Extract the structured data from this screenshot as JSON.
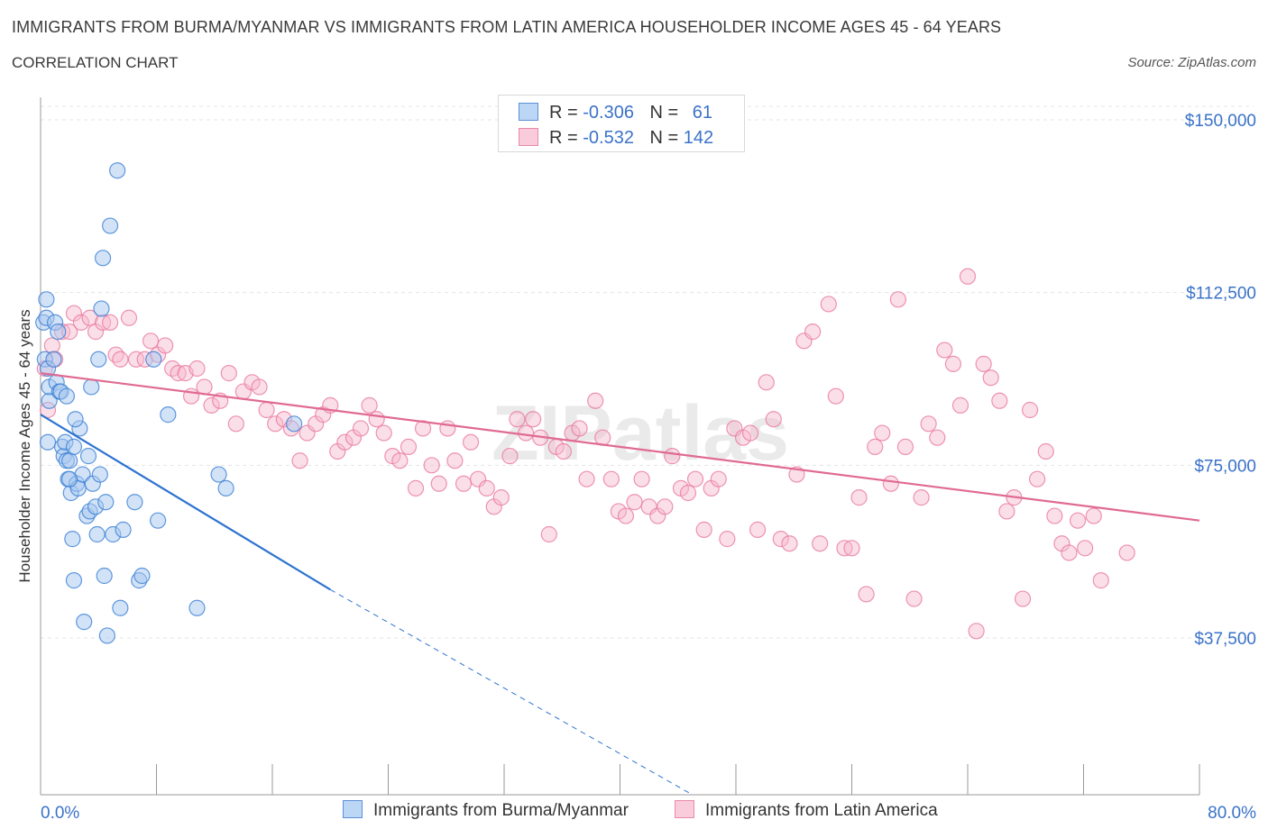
{
  "title": "IMMIGRANTS FROM BURMA/MYANMAR VS IMMIGRANTS FROM LATIN AMERICA HOUSEHOLDER INCOME AGES 45 - 64 YEARS",
  "subtitle": "CORRELATION CHART",
  "source": "Source: ZipAtlas.com",
  "watermark": "ZIPatlas",
  "colors": {
    "blue_fill": "#a8c8f0",
    "blue_stroke": "#3a7fd4",
    "blue_line": "#2f74d0",
    "pink_fill": "#f6b8cc",
    "pink_stroke": "#e8799f",
    "pink_line": "#e06a92",
    "axis_label": "#3a72c9"
  },
  "legend": {
    "rows": [
      {
        "r_label": "R =",
        "r_value": "-0.306",
        "n_label": "N =",
        "n_value": "61"
      },
      {
        "r_label": "R =",
        "r_value": "-0.532",
        "n_label": "N =",
        "n_value": "142"
      }
    ]
  },
  "bottom_legend": [
    "Immigrants from Burma/Myanmar",
    "Immigrants from Latin America"
  ],
  "chart_data": {
    "type": "scatter",
    "ylabel": "Householder Income Ages 45 - 64 years",
    "x_tick_labels": [
      "0.0%",
      "80.0%"
    ],
    "y_tick_labels": [
      "$150,000",
      "$112,500",
      "$75,000",
      "$37,500"
    ],
    "y_ticks": [
      150000,
      112500,
      75000,
      37500
    ],
    "xlim": [
      0,
      80
    ],
    "ylim": [
      10000,
      155000
    ],
    "grid": true,
    "series": [
      {
        "name": "Immigrants from Burma/Myanmar",
        "points": [
          [
            0.2,
            106000
          ],
          [
            0.4,
            107000
          ],
          [
            0.3,
            98000
          ],
          [
            0.5,
            96000
          ],
          [
            0.6,
            89000
          ],
          [
            0.4,
            111000
          ],
          [
            0.6,
            92000
          ],
          [
            0.5,
            80000
          ],
          [
            1.0,
            106000
          ],
          [
            1.1,
            93000
          ],
          [
            1.3,
            91000
          ],
          [
            1.4,
            91000
          ],
          [
            1.5,
            79000
          ],
          [
            1.6,
            77000
          ],
          [
            1.7,
            80000
          ],
          [
            1.8,
            76000
          ],
          [
            1.9,
            72000
          ],
          [
            2.0,
            76000
          ],
          [
            2.1,
            69000
          ],
          [
            2.2,
            59000
          ],
          [
            2.3,
            79000
          ],
          [
            2.3,
            50000
          ],
          [
            2.5,
            71000
          ],
          [
            2.6,
            70000
          ],
          [
            2.7,
            83000
          ],
          [
            2.9,
            73000
          ],
          [
            3.0,
            41000
          ],
          [
            3.2,
            64000
          ],
          [
            3.3,
            77000
          ],
          [
            3.4,
            65000
          ],
          [
            3.5,
            92000
          ],
          [
            3.6,
            71000
          ],
          [
            3.8,
            66000
          ],
          [
            4.0,
            98000
          ],
          [
            4.1,
            73000
          ],
          [
            4.2,
            109000
          ],
          [
            4.3,
            120000
          ],
          [
            4.4,
            51000
          ],
          [
            4.5,
            67000
          ],
          [
            4.6,
            38000
          ],
          [
            4.8,
            127000
          ],
          [
            5.0,
            60000
          ],
          [
            5.3,
            139000
          ],
          [
            5.5,
            44000
          ],
          [
            5.7,
            61000
          ],
          [
            6.5,
            67000
          ],
          [
            6.8,
            50000
          ],
          [
            7.0,
            51000
          ],
          [
            7.8,
            98000
          ],
          [
            8.1,
            63000
          ],
          [
            8.8,
            86000
          ],
          [
            10.8,
            44000
          ],
          [
            12.3,
            73000
          ],
          [
            12.8,
            70000
          ],
          [
            17.5,
            84000
          ],
          [
            1.2,
            104000
          ],
          [
            1.8,
            90000
          ],
          [
            2.4,
            85000
          ],
          [
            3.9,
            60000
          ],
          [
            0.9,
            98000
          ],
          [
            2.0,
            72000
          ]
        ],
        "trend": {
          "x": [
            0,
            20
          ],
          "y": [
            86000,
            48000
          ],
          "dashed_to": {
            "x": 45,
            "y": 0
          }
        }
      },
      {
        "name": "Immigrants from Latin America",
        "points": [
          [
            0.3,
            96000
          ],
          [
            0.5,
            87000
          ],
          [
            0.8,
            101000
          ],
          [
            1.0,
            98000
          ],
          [
            1.5,
            104000
          ],
          [
            2.0,
            104000
          ],
          [
            2.3,
            108000
          ],
          [
            2.8,
            106000
          ],
          [
            3.4,
            107000
          ],
          [
            3.8,
            104000
          ],
          [
            4.3,
            106000
          ],
          [
            4.8,
            106000
          ],
          [
            5.2,
            99000
          ],
          [
            5.5,
            98000
          ],
          [
            6.1,
            107000
          ],
          [
            6.6,
            98000
          ],
          [
            7.2,
            98000
          ],
          [
            7.6,
            102000
          ],
          [
            8.1,
            99000
          ],
          [
            8.6,
            101000
          ],
          [
            9.1,
            96000
          ],
          [
            9.5,
            95000
          ],
          [
            10.0,
            95000
          ],
          [
            10.4,
            90000
          ],
          [
            10.8,
            96000
          ],
          [
            11.3,
            92000
          ],
          [
            11.8,
            88000
          ],
          [
            12.4,
            89000
          ],
          [
            13.0,
            95000
          ],
          [
            13.5,
            84000
          ],
          [
            14.0,
            91000
          ],
          [
            14.6,
            93000
          ],
          [
            15.1,
            92000
          ],
          [
            15.6,
            87000
          ],
          [
            16.2,
            84000
          ],
          [
            16.8,
            85000
          ],
          [
            17.3,
            83000
          ],
          [
            17.9,
            76000
          ],
          [
            18.4,
            82000
          ],
          [
            19.0,
            84000
          ],
          [
            19.5,
            86000
          ],
          [
            20.0,
            88000
          ],
          [
            20.5,
            78000
          ],
          [
            21.0,
            80000
          ],
          [
            21.6,
            81000
          ],
          [
            22.1,
            83000
          ],
          [
            22.7,
            88000
          ],
          [
            23.2,
            85000
          ],
          [
            23.7,
            82000
          ],
          [
            24.3,
            77000
          ],
          [
            24.8,
            76000
          ],
          [
            25.4,
            79000
          ],
          [
            25.9,
            70000
          ],
          [
            26.4,
            83000
          ],
          [
            27.0,
            75000
          ],
          [
            27.5,
            71000
          ],
          [
            28.1,
            83000
          ],
          [
            28.6,
            76000
          ],
          [
            29.2,
            71000
          ],
          [
            29.7,
            80000
          ],
          [
            30.2,
            72000
          ],
          [
            30.8,
            70000
          ],
          [
            31.3,
            66000
          ],
          [
            31.8,
            68000
          ],
          [
            32.4,
            77000
          ],
          [
            32.9,
            85000
          ],
          [
            33.5,
            82000
          ],
          [
            34.0,
            85000
          ],
          [
            34.5,
            81000
          ],
          [
            35.1,
            60000
          ],
          [
            35.6,
            79000
          ],
          [
            36.1,
            78000
          ],
          [
            36.7,
            82000
          ],
          [
            37.2,
            83000
          ],
          [
            37.7,
            72000
          ],
          [
            38.3,
            89000
          ],
          [
            38.8,
            81000
          ],
          [
            39.4,
            72000
          ],
          [
            39.9,
            65000
          ],
          [
            40.4,
            64000
          ],
          [
            41.0,
            67000
          ],
          [
            41.5,
            72000
          ],
          [
            42.0,
            66000
          ],
          [
            42.6,
            64000
          ],
          [
            43.1,
            66000
          ],
          [
            43.6,
            77000
          ],
          [
            44.2,
            70000
          ],
          [
            44.7,
            69000
          ],
          [
            45.2,
            72000
          ],
          [
            45.8,
            61000
          ],
          [
            46.3,
            70000
          ],
          [
            46.8,
            72000
          ],
          [
            47.4,
            59000
          ],
          [
            47.9,
            83000
          ],
          [
            48.5,
            81000
          ],
          [
            49.0,
            82000
          ],
          [
            49.5,
            61000
          ],
          [
            50.1,
            93000
          ],
          [
            50.6,
            85000
          ],
          [
            51.1,
            59000
          ],
          [
            51.7,
            58000
          ],
          [
            52.2,
            73000
          ],
          [
            52.7,
            102000
          ],
          [
            53.3,
            104000
          ],
          [
            53.8,
            58000
          ],
          [
            54.4,
            110000
          ],
          [
            54.9,
            90000
          ],
          [
            55.5,
            57000
          ],
          [
            56.0,
            57000
          ],
          [
            56.5,
            68000
          ],
          [
            57.0,
            47000
          ],
          [
            57.6,
            79000
          ],
          [
            58.1,
            82000
          ],
          [
            58.7,
            71000
          ],
          [
            59.2,
            111000
          ],
          [
            59.7,
            79000
          ],
          [
            60.3,
            46000
          ],
          [
            60.8,
            68000
          ],
          [
            61.3,
            84000
          ],
          [
            61.9,
            81000
          ],
          [
            62.4,
            100000
          ],
          [
            63.0,
            97000
          ],
          [
            63.5,
            88000
          ],
          [
            64.0,
            116000
          ],
          [
            64.6,
            39000
          ],
          [
            65.1,
            97000
          ],
          [
            65.6,
            94000
          ],
          [
            66.2,
            89000
          ],
          [
            66.7,
            65000
          ],
          [
            67.2,
            68000
          ],
          [
            67.8,
            46000
          ],
          [
            68.3,
            87000
          ],
          [
            68.8,
            72000
          ],
          [
            69.4,
            78000
          ],
          [
            70.0,
            64000
          ],
          [
            70.5,
            58000
          ],
          [
            71.0,
            56000
          ],
          [
            71.6,
            63000
          ],
          [
            72.1,
            57000
          ],
          [
            72.7,
            64000
          ],
          [
            73.2,
            50000
          ],
          [
            75.0,
            56000
          ]
        ],
        "trend": {
          "x": [
            0,
            80
          ],
          "y": [
            95000,
            63000
          ]
        }
      }
    ]
  }
}
